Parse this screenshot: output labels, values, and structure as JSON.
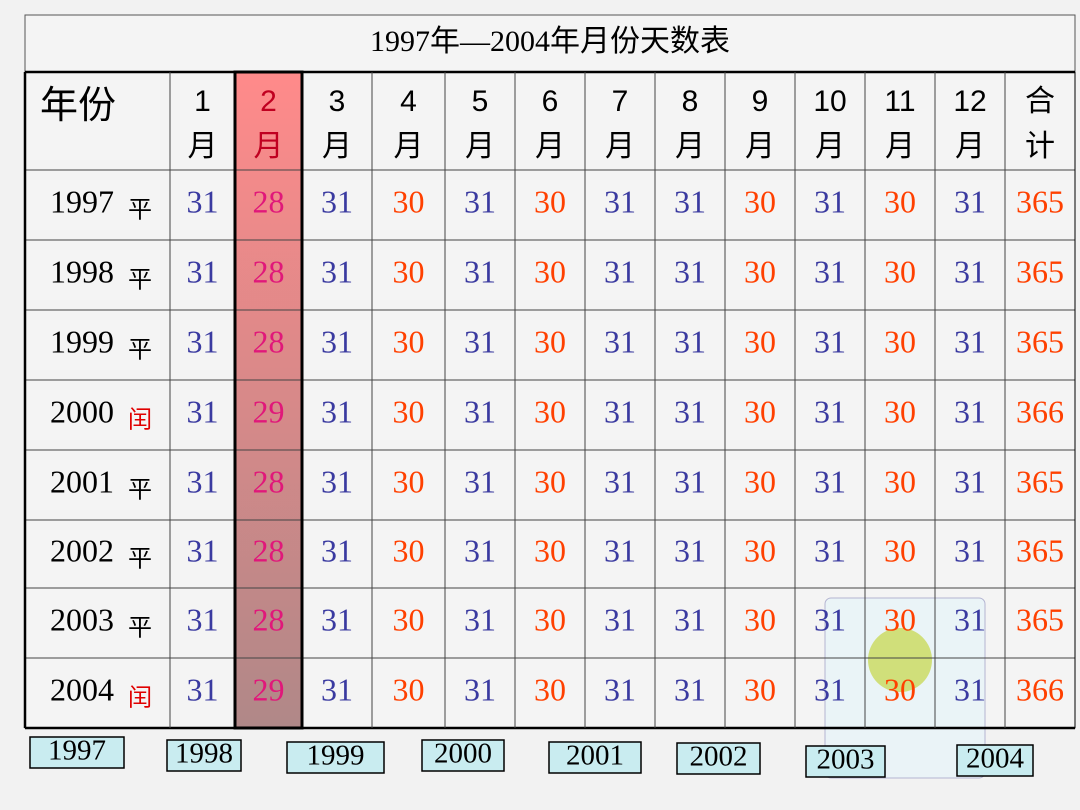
{
  "title": "1997年—2004年月份天数表",
  "header": {
    "year": "年份",
    "months": [
      [
        "1",
        "月"
      ],
      [
        "2",
        "月"
      ],
      [
        "3",
        "月"
      ],
      [
        "4",
        "月"
      ],
      [
        "5",
        "月"
      ],
      [
        "6",
        "月"
      ],
      [
        "7",
        "月"
      ],
      [
        "8",
        "月"
      ],
      [
        "9",
        "月"
      ],
      [
        "10",
        "月"
      ],
      [
        "11",
        "月"
      ],
      [
        "12",
        "月"
      ]
    ],
    "total": [
      "合",
      "计"
    ]
  },
  "rows": [
    {
      "year": "1997",
      "kind": "平",
      "days": [
        31,
        28,
        31,
        30,
        31,
        30,
        31,
        31,
        30,
        31,
        30,
        31
      ],
      "total": 365
    },
    {
      "year": "1998",
      "kind": "平",
      "days": [
        31,
        28,
        31,
        30,
        31,
        30,
        31,
        31,
        30,
        31,
        30,
        31
      ],
      "total": 365
    },
    {
      "year": "1999",
      "kind": "平",
      "days": [
        31,
        28,
        31,
        30,
        31,
        30,
        31,
        31,
        30,
        31,
        30,
        31
      ],
      "total": 365
    },
    {
      "year": "2000",
      "kind": "闰",
      "days": [
        31,
        29,
        31,
        30,
        31,
        30,
        31,
        31,
        30,
        31,
        30,
        31
      ],
      "total": 366
    },
    {
      "year": "2001",
      "kind": "平",
      "days": [
        31,
        28,
        31,
        30,
        31,
        30,
        31,
        31,
        30,
        31,
        30,
        31
      ],
      "total": 365
    },
    {
      "year": "2002",
      "kind": "平",
      "days": [
        31,
        28,
        31,
        30,
        31,
        30,
        31,
        31,
        30,
        31,
        30,
        31
      ],
      "total": 365
    },
    {
      "year": "2003",
      "kind": "平",
      "days": [
        31,
        28,
        31,
        30,
        31,
        30,
        31,
        31,
        30,
        31,
        30,
        31
      ],
      "total": 365
    },
    {
      "year": "2004",
      "kind": "闰",
      "days": [
        31,
        29,
        31,
        30,
        31,
        30,
        31,
        31,
        30,
        31,
        30,
        31
      ],
      "total": 366
    }
  ],
  "colors": {
    "months": [
      "#3a3aa0",
      "#e0187a",
      "#3a3aa0",
      "#ff4000",
      "#3a3aa0",
      "#ff4000",
      "#3a3aa0",
      "#3a3aa0",
      "#ff4000",
      "#3a3aa0",
      "#ff4000",
      "#3a3aa0"
    ],
    "total": "#ff4000",
    "kinds": {
      "平": "#000000",
      "闰": "#e00000"
    }
  },
  "buttons": [
    "1997",
    "1998",
    "1999",
    "2000",
    "2001",
    "2002",
    "2003",
    "2004"
  ]
}
